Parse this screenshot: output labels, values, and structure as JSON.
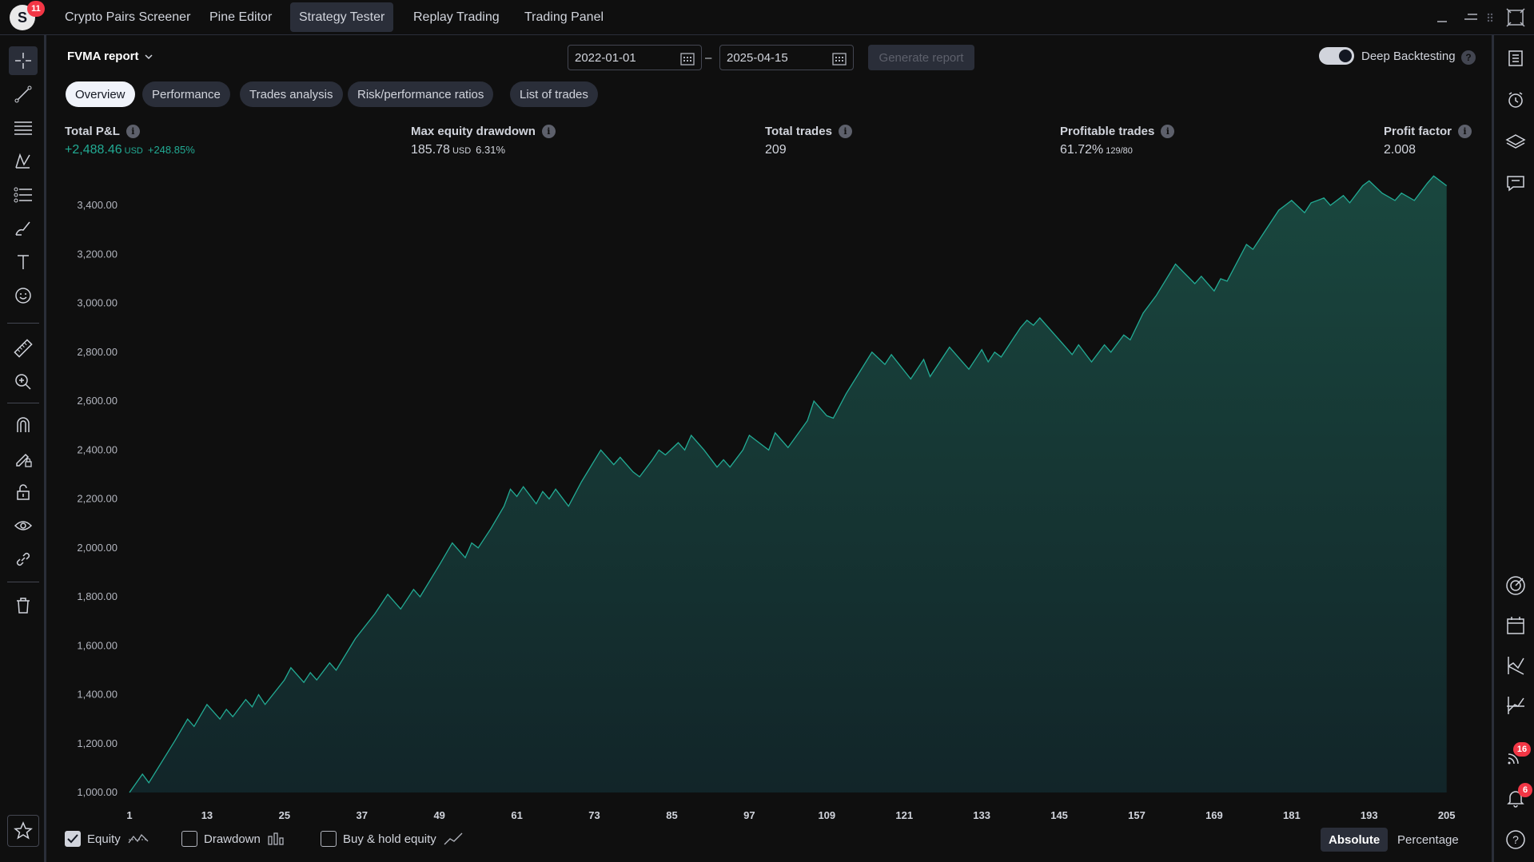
{
  "app": {
    "logo_letter": "S",
    "logo_badge": "11",
    "tabs": [
      "Crypto Pairs Screener",
      "Pine Editor",
      "Strategy Tester",
      "Replay Trading",
      "Trading Panel"
    ],
    "active_tab": "Strategy Tester"
  },
  "report": {
    "title": "FVMA report",
    "date_from": "2022-01-01",
    "date_to": "2025-04-15",
    "date_separator": "–",
    "generate_label": "Generate report",
    "deep_backtesting_label": "Deep Backtesting",
    "deep_backtesting_on": true,
    "help_glyph": "?"
  },
  "panel_tabs": [
    "Overview",
    "Performance",
    "Trades analysis",
    "Risk/performance ratios",
    "List of trades"
  ],
  "metrics": {
    "total_pnl": {
      "label": "Total P&L",
      "value": "+2,488.46",
      "unit": "USD",
      "pct": "+248.85%"
    },
    "max_drawdown": {
      "label": "Max equity drawdown",
      "value": "185.78",
      "unit": "USD",
      "pct": "6.31%"
    },
    "total_trades": {
      "label": "Total trades",
      "value": "209"
    },
    "profitable_trades": {
      "label": "Profitable trades",
      "value": "61.72%",
      "detail": "129/80"
    },
    "profit_factor": {
      "label": "Profit factor",
      "value": "2.008"
    }
  },
  "chart_data": {
    "type": "area",
    "ylim": [
      1000,
      3400
    ],
    "y_ticks": [
      "1,000.00",
      "1,200.00",
      "1,400.00",
      "1,600.00",
      "1,800.00",
      "2,000.00",
      "2,200.00",
      "2,400.00",
      "2,600.00",
      "2,800.00",
      "3,000.00",
      "3,200.00",
      "3,400.00"
    ],
    "x_ticks": [
      "1",
      "13",
      "25",
      "37",
      "49",
      "61",
      "73",
      "85",
      "97",
      "109",
      "121",
      "133",
      "145",
      "157",
      "169",
      "181",
      "193",
      "205"
    ],
    "x_range": [
      1,
      209
    ],
    "series": [
      {
        "values": [
          [
            1,
            1000
          ],
          [
            3,
            1075
          ],
          [
            4,
            1040
          ],
          [
            8,
            1210
          ],
          [
            10,
            1300
          ],
          [
            11,
            1270
          ],
          [
            13,
            1360
          ],
          [
            15,
            1300
          ],
          [
            16,
            1340
          ],
          [
            17,
            1310
          ],
          [
            19,
            1380
          ],
          [
            20,
            1350
          ],
          [
            21,
            1400
          ],
          [
            22,
            1360
          ],
          [
            25,
            1460
          ],
          [
            26,
            1510
          ],
          [
            28,
            1450
          ],
          [
            29,
            1490
          ],
          [
            30,
            1460
          ],
          [
            32,
            1530
          ],
          [
            33,
            1500
          ],
          [
            36,
            1630
          ],
          [
            39,
            1730
          ],
          [
            41,
            1810
          ],
          [
            43,
            1750
          ],
          [
            45,
            1830
          ],
          [
            46,
            1800
          ],
          [
            49,
            1930
          ],
          [
            51,
            2020
          ],
          [
            53,
            1960
          ],
          [
            54,
            2020
          ],
          [
            55,
            2000
          ],
          [
            57,
            2080
          ],
          [
            59,
            2170
          ],
          [
            60,
            2240
          ],
          [
            61,
            2210
          ],
          [
            62,
            2250
          ],
          [
            64,
            2180
          ],
          [
            65,
            2230
          ],
          [
            66,
            2200
          ],
          [
            67,
            2240
          ],
          [
            69,
            2170
          ],
          [
            71,
            2270
          ],
          [
            74,
            2400
          ],
          [
            76,
            2340
          ],
          [
            77,
            2370
          ],
          [
            79,
            2310
          ],
          [
            80,
            2290
          ],
          [
            82,
            2360
          ],
          [
            83,
            2400
          ],
          [
            84,
            2380
          ],
          [
            86,
            2430
          ],
          [
            87,
            2400
          ],
          [
            88,
            2460
          ],
          [
            90,
            2400
          ],
          [
            92,
            2330
          ],
          [
            93,
            2360
          ],
          [
            94,
            2330
          ],
          [
            96,
            2400
          ],
          [
            97,
            2460
          ],
          [
            99,
            2420
          ],
          [
            100,
            2400
          ],
          [
            101,
            2470
          ],
          [
            103,
            2410
          ],
          [
            106,
            2520
          ],
          [
            107,
            2600
          ],
          [
            109,
            2540
          ],
          [
            110,
            2530
          ],
          [
            112,
            2630
          ],
          [
            116,
            2800
          ],
          [
            118,
            2750
          ],
          [
            119,
            2790
          ],
          [
            122,
            2690
          ],
          [
            124,
            2770
          ],
          [
            125,
            2700
          ],
          [
            128,
            2820
          ],
          [
            131,
            2730
          ],
          [
            133,
            2810
          ],
          [
            134,
            2760
          ],
          [
            135,
            2800
          ],
          [
            136,
            2780
          ],
          [
            139,
            2900
          ],
          [
            140,
            2930
          ],
          [
            141,
            2910
          ],
          [
            142,
            2940
          ],
          [
            146,
            2820
          ],
          [
            147,
            2790
          ],
          [
            148,
            2830
          ],
          [
            150,
            2760
          ],
          [
            152,
            2830
          ],
          [
            153,
            2800
          ],
          [
            155,
            2870
          ],
          [
            156,
            2850
          ],
          [
            158,
            2960
          ],
          [
            160,
            3030
          ],
          [
            163,
            3160
          ],
          [
            166,
            3080
          ],
          [
            167,
            3110
          ],
          [
            169,
            3050
          ],
          [
            170,
            3100
          ],
          [
            171,
            3090
          ],
          [
            174,
            3240
          ],
          [
            175,
            3220
          ],
          [
            177,
            3300
          ],
          [
            179,
            3380
          ],
          [
            181,
            3420
          ],
          [
            183,
            3370
          ],
          [
            184,
            3410
          ],
          [
            186,
            3430
          ],
          [
            187,
            3400
          ],
          [
            189,
            3440
          ],
          [
            190,
            3410
          ],
          [
            192,
            3480
          ],
          [
            193,
            3500
          ],
          [
            195,
            3450
          ],
          [
            197,
            3420
          ],
          [
            198,
            3450
          ],
          [
            200,
            3420
          ],
          [
            202,
            3490
          ],
          [
            203,
            3520
          ],
          [
            205,
            3480
          ]
        ]
      }
    ],
    "legend": [
      {
        "label": "Equity",
        "checked": true
      },
      {
        "label": "Drawdown",
        "checked": false
      },
      {
        "label": "Buy & hold equity",
        "checked": false
      }
    ],
    "line_color": "#22ab94",
    "fill_color": "#163a33"
  },
  "view_modes": [
    "Absolute",
    "Percentage"
  ],
  "active_view_mode": "Absolute",
  "right_badges": {
    "feed": "16",
    "alerts": "6"
  }
}
